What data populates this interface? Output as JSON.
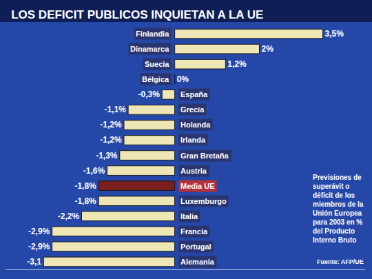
{
  "chart_data": {
    "type": "bar",
    "orientation": "horizontal",
    "title": "LOS DEFICIT PUBLICOS INQUIETAN A LA UE",
    "categories": [
      "Finlandia",
      "Dinamarca",
      "Suecia",
      "Bélgica",
      "España",
      "Grecia",
      "Holanda",
      "Irlanda",
      "Gran Bretaña",
      "Austria",
      "Media UE",
      "Luxemburgo",
      "Italia",
      "Francia",
      "Portugal",
      "Alemania"
    ],
    "values": [
      3.5,
      2,
      1.2,
      0,
      -0.3,
      -1.1,
      -1.2,
      -1.2,
      -1.3,
      -1.6,
      -1.8,
      -1.8,
      -2.2,
      -2.9,
      -2.9,
      -3.1
    ],
    "value_labels": [
      "3,5%",
      "2%",
      "1,2%",
      "0%",
      "-0,3%",
      "-1,1%",
      "-1,2%",
      "-1,2%",
      "-1,3%",
      "-1,6%",
      "-1,8%",
      "-1,8%",
      "-2,2%",
      "-2,9%",
      "-2,9%",
      "-3,1"
    ],
    "colors": [
      "#efe6b5",
      "#efe6b5",
      "#efe6b5",
      "#efe6b5",
      "#efe6b5",
      "#efe6b5",
      "#efe6b5",
      "#efe6b5",
      "#efe6b5",
      "#efe6b5",
      "#7a1e1e",
      "#efe6b5",
      "#efe6b5",
      "#efe6b5",
      "#efe6b5",
      "#efe6b5"
    ],
    "data_labels": true,
    "tick_labels": false,
    "grid": false,
    "xlim": [
      -4,
      4.5
    ],
    "xticks": [],
    "annotations": [
      "Previsiones de superávit o déficit de los miembros de la Unión Europea para 2003 en % del Producto Interno Bruto",
      "Fuente: AFP/UE"
    ]
  }
}
